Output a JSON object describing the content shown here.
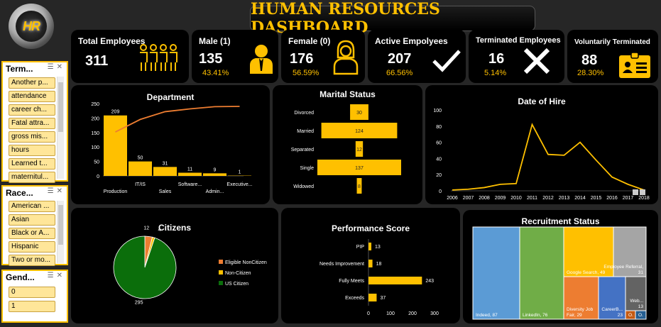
{
  "logo": {
    "text": "HR"
  },
  "title": "HUMAN RESOURCES DASHBOARD",
  "kpis": {
    "total": {
      "label": "Total Employees",
      "value": "311"
    },
    "male": {
      "label": "Male  (1)",
      "value": "135",
      "pct": "43.41%"
    },
    "female": {
      "label": "Female (0)",
      "value": "176",
      "pct": "56.59%"
    },
    "active": {
      "label": "Active Empolyees",
      "value": "207",
      "pct": "66.56%"
    },
    "terminated": {
      "label": "Terminated Employees",
      "value": "16",
      "pct": "5.14%"
    },
    "voluntary": {
      "label": "Voluntarily Terminated",
      "value": "88",
      "pct": "28.30%"
    }
  },
  "slicers": {
    "term": {
      "title": "Term...",
      "items": [
        "Another p...",
        "attendance",
        "career ch...",
        "Fatal attra...",
        "gross mis...",
        "hours",
        "Learned t...",
        "maternitul..."
      ]
    },
    "race": {
      "title": "Race...",
      "items": [
        "American ...",
        "Asian",
        "Black or A...",
        "Hispanic",
        "Two or mo..."
      ]
    },
    "gender": {
      "title": "Gend...",
      "items": [
        "0",
        "1"
      ]
    }
  },
  "colors": {
    "accent": "#ffc000",
    "line": "#ed7d31",
    "card": "#000000",
    "bg": "#262626"
  },
  "chart_data": [
    {
      "id": "department",
      "type": "bar",
      "title": "Department",
      "categories": [
        "Production",
        "IT/IS",
        "Sales",
        "Software...",
        "Admin...",
        "Executive..."
      ],
      "values": [
        209,
        50,
        31,
        11,
        9,
        1
      ],
      "ylim": [
        0,
        250
      ],
      "yticks": [
        0,
        50,
        100,
        150,
        200,
        250
      ],
      "pareto_line": true
    },
    {
      "id": "marital",
      "type": "bar",
      "title": "Marital Status",
      "orientation": "horizontal",
      "categories": [
        "Divorced",
        "Married",
        "Separated",
        "Single",
        "Widowed"
      ],
      "values": [
        30,
        124,
        12,
        137,
        8
      ]
    },
    {
      "id": "hire",
      "type": "line",
      "title": "Date of Hire",
      "x": [
        "2006",
        "2007",
        "2008",
        "2009",
        "2010",
        "2011",
        "2012",
        "2013",
        "2014",
        "2015",
        "2016",
        "2017",
        "2018"
      ],
      "values": [
        1,
        2,
        4,
        8,
        9,
        82,
        45,
        44,
        60,
        38,
        17,
        8,
        1
      ],
      "ylim": [
        0,
        100
      ],
      "yticks": [
        0,
        20,
        40,
        60,
        80,
        100
      ]
    },
    {
      "id": "citizens",
      "type": "pie",
      "title": "Citizens",
      "labels": [
        "Eligible NonCitizen",
        "Non-Citizen",
        "US Citizen"
      ],
      "values": [
        12,
        4,
        295
      ],
      "colors": [
        "#ed7d31",
        "#ffc000",
        "#0b6e0b"
      ]
    },
    {
      "id": "performance",
      "type": "bar",
      "title": "Performance Score",
      "orientation": "horizontal",
      "categories": [
        "PIP",
        "Needs Improvement",
        "Fully Meets",
        "Exceeds"
      ],
      "values": [
        13,
        18,
        243,
        37
      ],
      "xlim": [
        0,
        300
      ],
      "xticks": [
        0,
        100,
        200,
        300
      ]
    },
    {
      "id": "recruitment",
      "type": "treemap",
      "title": "Recruitment Status",
      "items": [
        {
          "label": "Indeed, 87",
          "value": 87,
          "color": "#5b9bd5"
        },
        {
          "label": "LinkedIn, 76",
          "value": 76,
          "color": "#70ad47"
        },
        {
          "label": "Google Search, 49",
          "value": 49,
          "color": "#ffc000"
        },
        {
          "label": "Employee Referral, 31",
          "value": 31,
          "color": "#a5a5a5"
        },
        {
          "label": "Diversity Job Fair, 29",
          "value": 29,
          "color": "#ed7d31"
        },
        {
          "label": "CareerB... 23",
          "value": 23,
          "color": "#4472c4"
        },
        {
          "label": "Web... 13",
          "value": 13,
          "color": "#636363"
        },
        {
          "label": "O...",
          "value": 2,
          "color": "#c55a11"
        },
        {
          "label": "O...",
          "value": 1,
          "color": "#255e91"
        }
      ]
    }
  ]
}
